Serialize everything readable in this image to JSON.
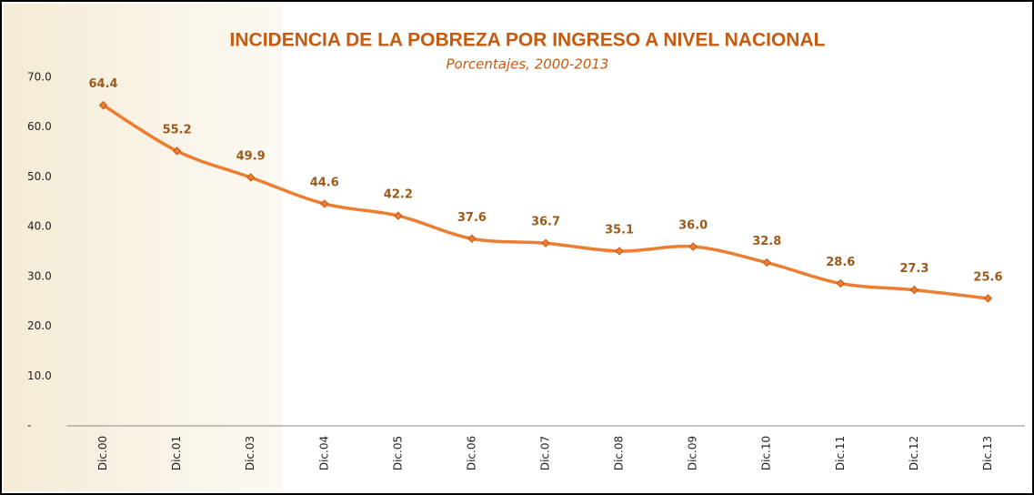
{
  "chart_data": {
    "type": "line",
    "title": "INCIDENCIA DE LA POBREZA POR INGRESO A NIVEL NACIONAL",
    "subtitle": "Porcentajes, 2000-2013",
    "categories": [
      "Dic.00",
      "Dic.01",
      "Dic.03",
      "Dic.04",
      "Dic.05",
      "Dic.06",
      "Dic.07",
      "Dic.08",
      "Dic.09",
      "Dic.10",
      "Dic.11",
      "Dic.12",
      "Dic.13"
    ],
    "values": [
      64.4,
      55.2,
      49.9,
      44.6,
      42.2,
      37.6,
      36.7,
      35.1,
      36.0,
      32.8,
      28.6,
      27.3,
      25.6
    ],
    "value_labels": [
      "64.4",
      "55.2",
      "49.9",
      "44.6",
      "42.2",
      "37.6",
      "36.7",
      "35.1",
      "36.0",
      "32.8",
      "28.6",
      "27.3",
      "25.6"
    ],
    "color": "#ed7d31",
    "ylim": [
      0,
      70
    ],
    "yticks": [
      {
        "value": 0,
        "label": "-"
      },
      {
        "value": 10,
        "label": "10.0"
      },
      {
        "value": 20,
        "label": "20.0"
      },
      {
        "value": 30,
        "label": "30.0"
      },
      {
        "value": 40,
        "label": "40.0"
      },
      {
        "value": 50,
        "label": "50.0"
      },
      {
        "value": 60,
        "label": "60.0"
      },
      {
        "value": 70,
        "label": "70.0"
      }
    ],
    "grid": false
  }
}
